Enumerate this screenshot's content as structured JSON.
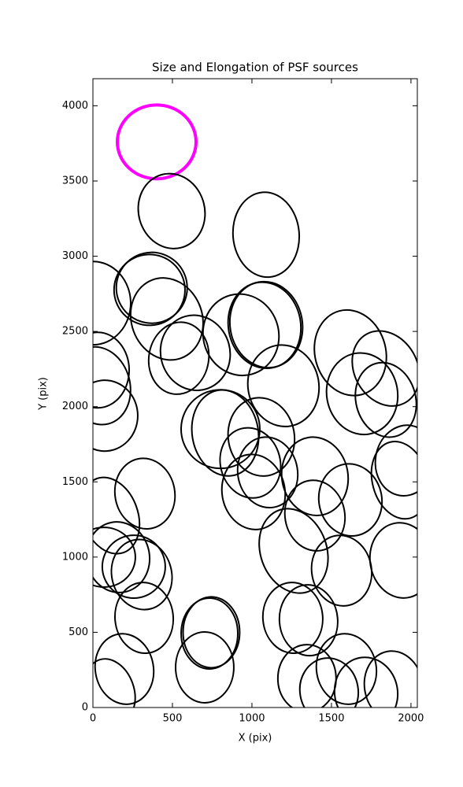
{
  "chart_data": {
    "type": "ellipse",
    "title": "Size and Elongation of PSF sources",
    "x_label": "X (pix)",
    "y_label": "Y (pix)",
    "xlim": [
      0,
      2040
    ],
    "ylim": [
      0,
      4180
    ],
    "xticks": [
      0,
      500,
      1000,
      1500,
      2000
    ],
    "yticks": [
      0,
      500,
      1000,
      1500,
      2000,
      2500,
      3000,
      3500,
      4000
    ],
    "series": [
      {
        "color": "#ff00ff",
        "ellipses": [
          {
            "x": 401,
            "y": 3760,
            "width": 495,
            "height": 491,
            "angle": 0
          }
        ]
      },
      {
        "color": "#000000",
        "ellipses": [
          {
            "x": 495,
            "y": 3300,
            "width": 416,
            "height": 502,
            "angle": -15
          },
          {
            "x": 1089,
            "y": 3143,
            "width": 416,
            "height": 565,
            "angle": -5
          },
          {
            "x": 356,
            "y": 2776,
            "width": 446,
            "height": 471,
            "angle": 20
          },
          {
            "x": 370,
            "y": 2790,
            "width": 446,
            "height": 471,
            "angle": 20
          },
          {
            "x": 0,
            "y": 2688,
            "width": 475,
            "height": 554,
            "angle": 0
          },
          {
            "x": 465,
            "y": 2583,
            "width": 446,
            "height": 554,
            "angle": -20
          },
          {
            "x": 931,
            "y": 2478,
            "width": 475,
            "height": 544,
            "angle": -15
          },
          {
            "x": 1079,
            "y": 2541,
            "width": 455,
            "height": 575,
            "angle": -10
          },
          {
            "x": 1090,
            "y": 2545,
            "width": 455,
            "height": 575,
            "angle": -10
          },
          {
            "x": 644,
            "y": 2358,
            "width": 436,
            "height": 502,
            "angle": -15
          },
          {
            "x": 540,
            "y": 2322,
            "width": 376,
            "height": 481,
            "angle": 10
          },
          {
            "x": 1619,
            "y": 2358,
            "width": 446,
            "height": 575,
            "angle": -15
          },
          {
            "x": 1842,
            "y": 2254,
            "width": 396,
            "height": 523,
            "angle": -30
          },
          {
            "x": 1198,
            "y": 2139,
            "width": 446,
            "height": 544,
            "angle": -10
          },
          {
            "x": 1693,
            "y": 2086,
            "width": 446,
            "height": 544,
            "angle": -10
          },
          {
            "x": 1842,
            "y": 2045,
            "width": 376,
            "height": 502,
            "angle": -15
          },
          {
            "x": 35,
            "y": 2139,
            "width": 396,
            "height": 523,
            "angle": -15
          },
          {
            "x": 30,
            "y": 2243,
            "width": 396,
            "height": 502,
            "angle": 0
          },
          {
            "x": 74,
            "y": 1940,
            "width": 416,
            "height": 471,
            "angle": 0
          },
          {
            "x": 802,
            "y": 1851,
            "width": 495,
            "height": 523,
            "angle": -20
          },
          {
            "x": 832,
            "y": 1825,
            "width": 416,
            "height": 575,
            "angle": -10
          },
          {
            "x": 1059,
            "y": 1799,
            "width": 416,
            "height": 523,
            "angle": -10
          },
          {
            "x": 990,
            "y": 1626,
            "width": 376,
            "height": 471,
            "angle": -15
          },
          {
            "x": 1099,
            "y": 1563,
            "width": 376,
            "height": 471,
            "angle": -10
          },
          {
            "x": 1010,
            "y": 1433,
            "width": 396,
            "height": 502,
            "angle": -10
          },
          {
            "x": 1396,
            "y": 1537,
            "width": 416,
            "height": 523,
            "angle": -10
          },
          {
            "x": 1619,
            "y": 1380,
            "width": 396,
            "height": 481,
            "angle": -10
          },
          {
            "x": 1396,
            "y": 1276,
            "width": 376,
            "height": 471,
            "angle": -10
          },
          {
            "x": 1965,
            "y": 1642,
            "width": 376,
            "height": 471,
            "angle": 10
          },
          {
            "x": 1931,
            "y": 1511,
            "width": 347,
            "height": 523,
            "angle": -15
          },
          {
            "x": 327,
            "y": 1422,
            "width": 376,
            "height": 471,
            "angle": -10
          },
          {
            "x": 109,
            "y": 1276,
            "width": 347,
            "height": 523,
            "angle": -20
          },
          {
            "x": 158,
            "y": 999,
            "width": 396,
            "height": 471,
            "angle": -10
          },
          {
            "x": 257,
            "y": 936,
            "width": 396,
            "height": 418,
            "angle": 0
          },
          {
            "x": 307,
            "y": 884,
            "width": 376,
            "height": 471,
            "angle": -15
          },
          {
            "x": 69,
            "y": 999,
            "width": 396,
            "height": 397,
            "angle": 0
          },
          {
            "x": 1262,
            "y": 1041,
            "width": 416,
            "height": 575,
            "angle": -20
          },
          {
            "x": 1564,
            "y": 910,
            "width": 376,
            "height": 471,
            "angle": -10
          },
          {
            "x": 1941,
            "y": 978,
            "width": 396,
            "height": 502,
            "angle": -10
          },
          {
            "x": 322,
            "y": 596,
            "width": 366,
            "height": 471,
            "angle": -5
          },
          {
            "x": 733,
            "y": 492,
            "width": 356,
            "height": 471,
            "angle": 0
          },
          {
            "x": 745,
            "y": 500,
            "width": 356,
            "height": 471,
            "angle": 0
          },
          {
            "x": 703,
            "y": 267,
            "width": 366,
            "height": 471,
            "angle": 0
          },
          {
            "x": 1257,
            "y": 596,
            "width": 376,
            "height": 471,
            "angle": -5
          },
          {
            "x": 1356,
            "y": 580,
            "width": 366,
            "height": 471,
            "angle": -5
          },
          {
            "x": 198,
            "y": 256,
            "width": 366,
            "height": 471,
            "angle": -10
          },
          {
            "x": 109,
            "y": 110,
            "width": 297,
            "height": 439,
            "angle": -20
          },
          {
            "x": 1346,
            "y": 193,
            "width": 366,
            "height": 450,
            "angle": 0
          },
          {
            "x": 1594,
            "y": 256,
            "width": 376,
            "height": 471,
            "angle": -10
          },
          {
            "x": 1485,
            "y": 110,
            "width": 366,
            "height": 439,
            "angle": -10
          },
          {
            "x": 1718,
            "y": 99,
            "width": 396,
            "height": 471,
            "angle": -10
          },
          {
            "x": 1891,
            "y": 141,
            "width": 366,
            "height": 471,
            "angle": -10
          }
        ]
      }
    ]
  }
}
